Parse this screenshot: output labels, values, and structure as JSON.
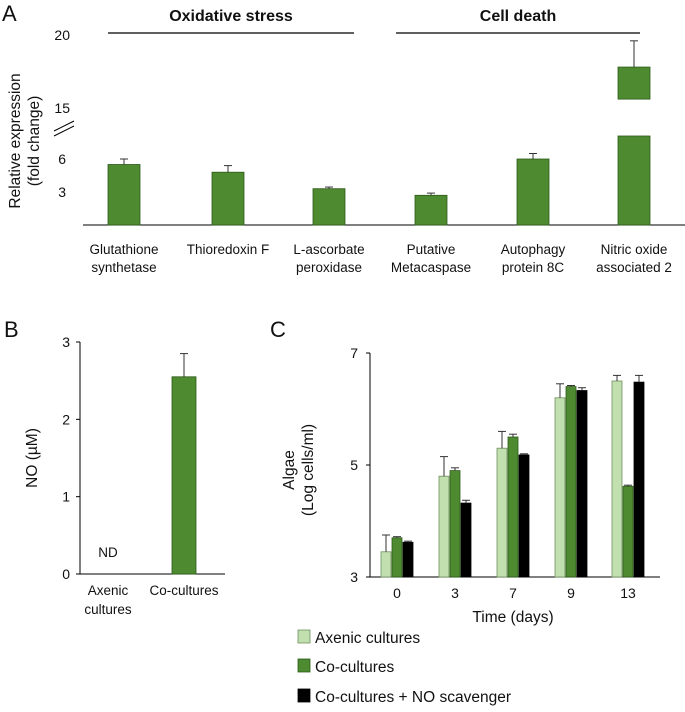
{
  "colors": {
    "dark_green": "#4e8a30",
    "light_green": "#c2dfb0",
    "black": "#000000",
    "axis": "#000000"
  },
  "panel_letters": {
    "a": "A",
    "b": "B",
    "c": "C"
  },
  "chart_data": [
    {
      "panel": "A",
      "type": "bar",
      "ylabel": "Relative expression\n(fold change)",
      "y_ticks_lower": [
        "3",
        "6"
      ],
      "y_ticks_upper": [
        "15",
        "20"
      ],
      "axis_break": {
        "lower_segment": [
          0,
          8
        ],
        "upper_segment": [
          13,
          20
        ]
      },
      "groups": [
        {
          "title": "Oxidative stress",
          "category_indices": [
            0,
            1,
            2
          ]
        },
        {
          "title": "Cell death",
          "category_indices": [
            3,
            4,
            5
          ]
        }
      ],
      "categories": [
        "Glutathione\nsynthetase",
        "Thioredoxin F",
        "L-ascorbate\nperoxidase",
        "Putative\nMetacaspase",
        "Autophagy\nprotein 8C",
        "Nitric oxide\nassociated 2"
      ],
      "series": [
        {
          "name": "Fold change",
          "color": "#4e8a30",
          "values": [
            5.5,
            4.8,
            3.3,
            2.7,
            6.0,
            17.8
          ],
          "errors": [
            0.5,
            0.6,
            0.15,
            0.2,
            0.5,
            1.8
          ]
        }
      ]
    },
    {
      "panel": "B",
      "type": "bar",
      "ylabel": "NO (µM)",
      "ylim": [
        0,
        3
      ],
      "y_ticks": [
        0,
        1,
        2,
        3
      ],
      "categories": [
        "Axenic\ncultures",
        "Co-cultures"
      ],
      "series": [
        {
          "name": "NO",
          "color": "#4e8a30",
          "values": [
            null,
            2.55
          ],
          "errors": [
            null,
            0.3
          ]
        }
      ],
      "annotations": [
        {
          "category_index": 0,
          "text": "ND"
        }
      ]
    },
    {
      "panel": "C",
      "type": "bar",
      "ylabel": "Algae\n(Log cells/ml)",
      "xlabel": "Time (days)",
      "ylim": [
        3,
        7
      ],
      "y_ticks": [
        3,
        5,
        7
      ],
      "categories": [
        "0",
        "3",
        "7",
        "9",
        "13"
      ],
      "series": [
        {
          "name": "Axenic cultures",
          "color": "#c2dfb0",
          "values": [
            3.45,
            4.8,
            5.3,
            6.2,
            6.5
          ],
          "errors": [
            0.3,
            0.35,
            0.3,
            0.25,
            0.1
          ]
        },
        {
          "name": "Co-cultures",
          "color": "#4e8a30",
          "values": [
            3.7,
            4.9,
            5.5,
            6.4,
            4.62
          ],
          "errors": [
            0.02,
            0.05,
            0.05,
            0.02,
            0.02
          ]
        },
        {
          "name": "Co-cultures + NO scavenger",
          "color": "#000000",
          "values": [
            3.62,
            4.32,
            5.18,
            6.33,
            6.48
          ],
          "errors": [
            0.02,
            0.05,
            0.02,
            0.05,
            0.12
          ]
        }
      ],
      "legend": {
        "position": "bottom",
        "entries": [
          "Axenic cultures",
          "Co-cultures",
          "Co-cultures + NO scavenger"
        ]
      }
    }
  ]
}
